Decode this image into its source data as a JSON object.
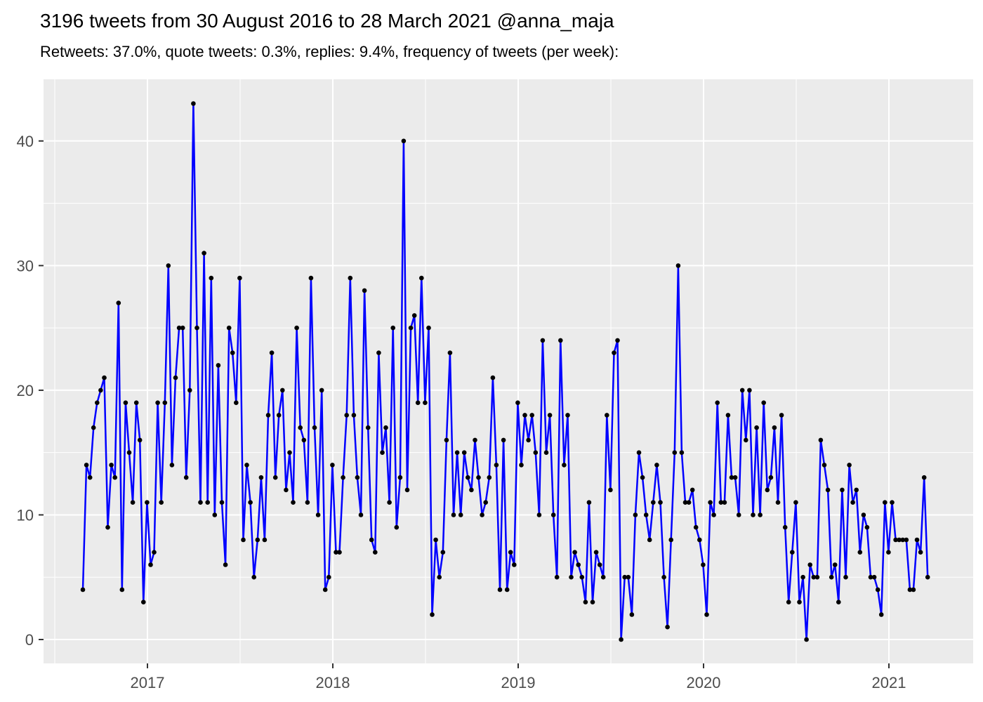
{
  "header": {
    "title": "3196 tweets from 30 August 2016 to 28 March 2021 @anna_maja",
    "subtitle": "Retweets: 37.0%, quote tweets: 0.3%, replies: 9.4%, frequency of tweets (per week):"
  },
  "chart_data": {
    "type": "line",
    "title": "3196 tweets from 30 August 2016 to 28 March 2021 @anna_maja",
    "subtitle": "Retweets: 37.0%, quote tweets: 0.3%, replies: 9.4%, frequency of tweets (per week):",
    "xlabel": "",
    "ylabel": "",
    "x_unit": "week",
    "x_start_label": "30 August 2016",
    "x_end_label": "28 March 2021",
    "x_tick_labels": [
      "2017",
      "2018",
      "2019",
      "2020",
      "2021"
    ],
    "x_tick_years": [
      2017,
      2018,
      2019,
      2020,
      2021
    ],
    "y_major_ticks": [
      0,
      10,
      20,
      30,
      40
    ],
    "y_minor_ticks": [
      5,
      15,
      25,
      35
    ],
    "ylim": [
      -2.15,
      45.15
    ],
    "grid": true,
    "legend": "none",
    "n_weeks": 238,
    "values": [
      4,
      14,
      13,
      17,
      19,
      20,
      21,
      9,
      14,
      13,
      27,
      4,
      19,
      15,
      11,
      19,
      16,
      3,
      11,
      6,
      7,
      19,
      11,
      19,
      30,
      14,
      21,
      25,
      25,
      13,
      20,
      43,
      25,
      11,
      31,
      11,
      29,
      10,
      22,
      11,
      6,
      25,
      23,
      19,
      29,
      8,
      14,
      11,
      5,
      8,
      13,
      8,
      18,
      23,
      13,
      18,
      20,
      12,
      15,
      11,
      25,
      17,
      16,
      11,
      29,
      17,
      10,
      20,
      4,
      5,
      14,
      7,
      7,
      13,
      18,
      29,
      18,
      13,
      10,
      28,
      17,
      8,
      7,
      23,
      15,
      17,
      11,
      25,
      9,
      13,
      40,
      12,
      25,
      26,
      19,
      29,
      19,
      25,
      2,
      8,
      5,
      7,
      16,
      23,
      10,
      15,
      10,
      15,
      13,
      12,
      16,
      13,
      10,
      11,
      13,
      21,
      14,
      4,
      16,
      4,
      7,
      6,
      19,
      14,
      18,
      16,
      18,
      15,
      10,
      24,
      15,
      18,
      10,
      5,
      24,
      14,
      18,
      5,
      7,
      6,
      5,
      3,
      11,
      3,
      7,
      6,
      5,
      18,
      12,
      23,
      24,
      0,
      5,
      5,
      2,
      10,
      15,
      13,
      10,
      8,
      11,
      14,
      11,
      5,
      1,
      8,
      15,
      30,
      15,
      11,
      11,
      12,
      9,
      8,
      6,
      2,
      11,
      10,
      19,
      11,
      11,
      18,
      13,
      13,
      10,
      20,
      16,
      20,
      10,
      17,
      10,
      19,
      12,
      13,
      17,
      11,
      18,
      9,
      3,
      7,
      11,
      3,
      5,
      0,
      6,
      5,
      5,
      16,
      14,
      12,
      5,
      6,
      3,
      12,
      5,
      14,
      11,
      12,
      7,
      10,
      9,
      5,
      5,
      4,
      2,
      11,
      7,
      11,
      8,
      8,
      8,
      8,
      4,
      4,
      8,
      7,
      13,
      5
    ],
    "colors": {
      "line": "#0000FF",
      "point": "#000000",
      "panel_background": "#EBEBEB",
      "gridline": "#FFFFFF",
      "axis_text": "#4D4D4D",
      "tick_mark": "#333333",
      "title_text": "#000000"
    }
  }
}
